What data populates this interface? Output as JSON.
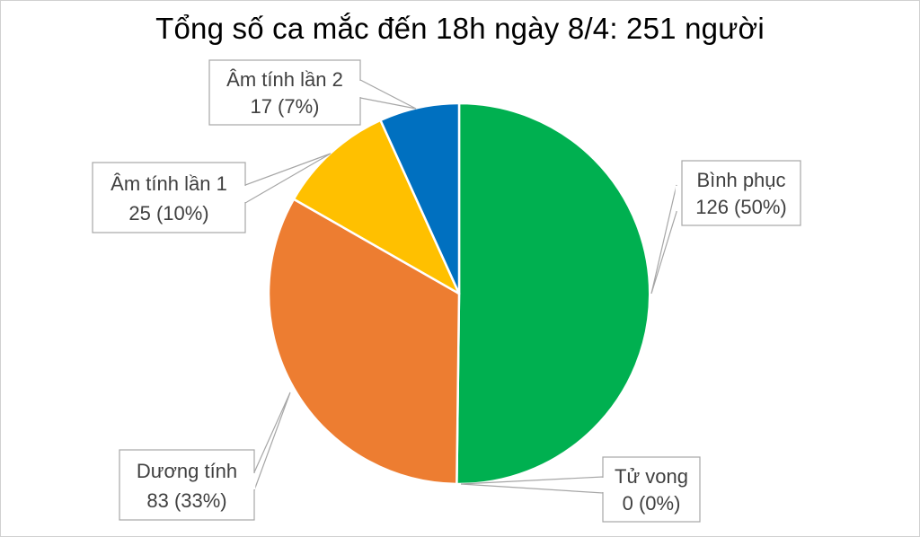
{
  "chart_data": {
    "type": "pie",
    "title": "Tổng số ca mắc đến 18h ngày 8/4: 251 người",
    "slices": [
      {
        "label": "Bình phục",
        "value": 126,
        "value_text": "126 (50%)",
        "color": "#00b050"
      },
      {
        "label": "Tử vong",
        "value": 0,
        "value_text": "0 (0%)",
        "color": "#a5a5a5"
      },
      {
        "label": "Dương tính",
        "value": 83,
        "value_text": "83 (33%)",
        "color": "#ed7d31"
      },
      {
        "label": "Âm tính lần 1",
        "value": 25,
        "value_text": "25 (10%)",
        "color": "#ffc000"
      },
      {
        "label": "Âm tính lần 2",
        "value": 17,
        "value_text": "17 (7%)",
        "color": "#0070c0"
      }
    ],
    "total": 251,
    "legend": "none",
    "data_labels": "callouts"
  }
}
